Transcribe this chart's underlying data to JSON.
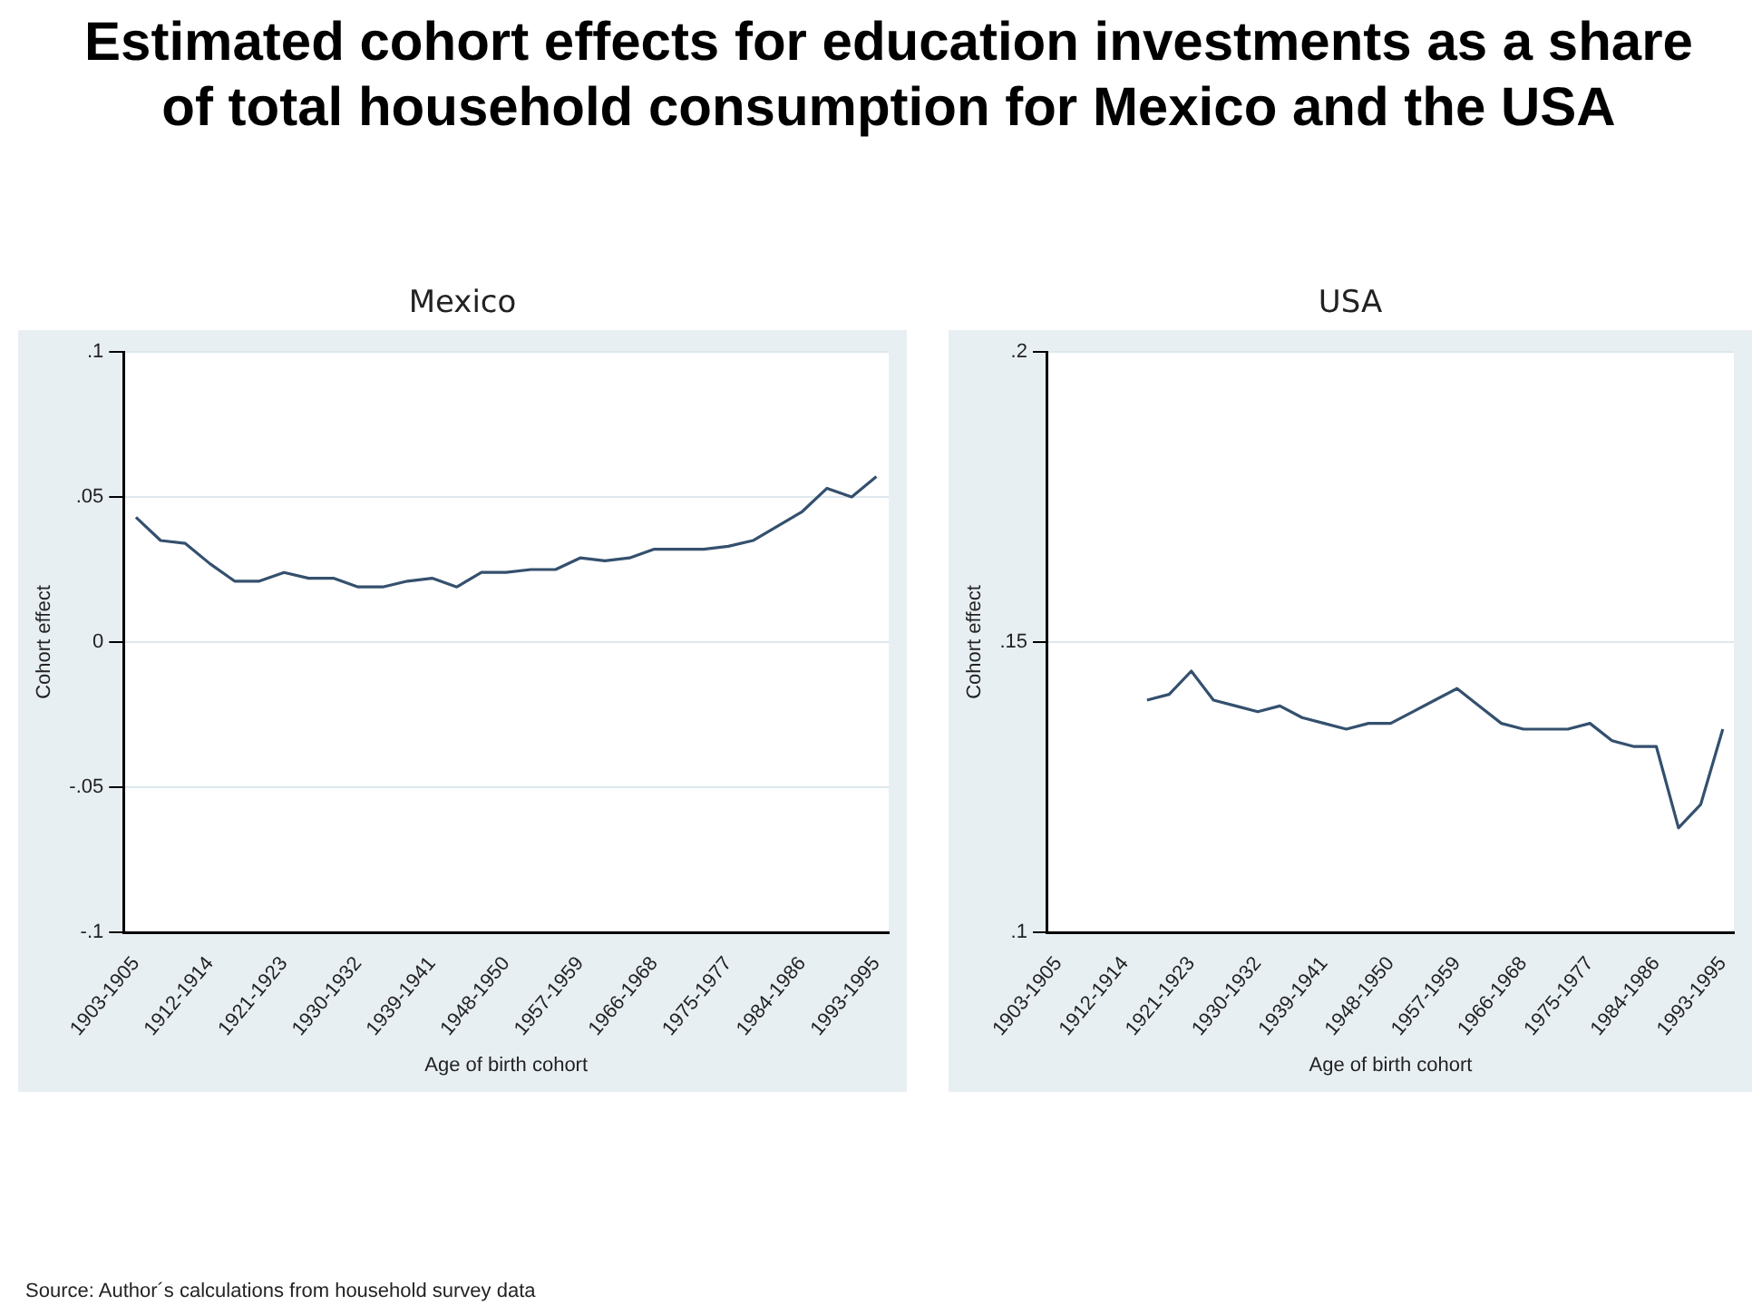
{
  "chart_data": [
    {
      "type": "line",
      "title": "Estimated cohort effects for education investments as a share of total household consumption for Mexico and the USA",
      "subtitle": "Mexico",
      "xlabel": "Age of birth cohort",
      "ylabel": "Cohort effect",
      "categories": [
        "1903-1905",
        null,
        null,
        "1912-1914",
        null,
        null,
        "1921-1923",
        null,
        null,
        "1930-1932",
        null,
        null,
        "1939-1941",
        null,
        null,
        "1948-1950",
        null,
        null,
        "1957-1959",
        null,
        null,
        "1966-1968",
        null,
        null,
        "1975-1977",
        null,
        null,
        "1984-1986",
        null,
        null,
        "1993-1995"
      ],
      "series": [
        {
          "color": "#34506e",
          "values": [
            0.043,
            0.035,
            0.034,
            0.027,
            0.021,
            0.021,
            0.024,
            0.022,
            0.022,
            0.019,
            0.019,
            0.021,
            0.022,
            0.019,
            0.024,
            0.024,
            0.025,
            0.025,
            0.029,
            0.028,
            0.029,
            0.032,
            0.032,
            0.032,
            0.033,
            0.035,
            0.04,
            0.045,
            0.053,
            0.05,
            0.057
          ]
        }
      ],
      "ylim": [
        -0.1,
        0.1
      ],
      "yticks": [
        {
          "value": -0.1,
          "label": "-.1"
        },
        {
          "value": -0.05,
          "label": "-.05"
        },
        0,
        {
          "value": 0.05,
          "label": ".05"
        },
        {
          "value": 0.1,
          "label": ".1"
        }
      ],
      "grid": "y",
      "legend": false,
      "marker": "none",
      "line_style": "solid",
      "annotations": [
        "Source: Author´s calculations from household survey data"
      ]
    },
    {
      "type": "line",
      "subtitle": "USA",
      "xlabel": "Age of birth cohort",
      "ylabel": "Cohort effect",
      "categories": [
        "1903-1905",
        null,
        null,
        "1912-1914",
        null,
        null,
        "1921-1923",
        null,
        null,
        "1930-1932",
        null,
        null,
        "1939-1941",
        null,
        null,
        "1948-1950",
        null,
        null,
        "1957-1959",
        null,
        null,
        "1966-1968",
        null,
        null,
        "1975-1977",
        null,
        null,
        "1984-1986",
        null,
        null,
        "1993-1995"
      ],
      "series": [
        {
          "color": "#34506e",
          "values": [
            null,
            null,
            null,
            null,
            0.14,
            0.141,
            0.145,
            0.14,
            0.139,
            0.138,
            0.139,
            0.137,
            0.136,
            0.135,
            0.136,
            0.136,
            0.138,
            0.14,
            0.142,
            0.139,
            0.136,
            0.135,
            0.135,
            0.135,
            0.136,
            0.133,
            0.132,
            0.132,
            0.118,
            0.122,
            0.135
          ]
        }
      ],
      "ylim": [
        0.1,
        0.2
      ],
      "yticks": [
        {
          "value": 0.1,
          "label": ".1"
        },
        {
          "value": 0.15,
          "label": ".15"
        },
        {
          "value": 0.2,
          "label": ".2"
        }
      ],
      "grid": "y",
      "legend": false,
      "marker": "none",
      "line_style": "solid"
    }
  ]
}
